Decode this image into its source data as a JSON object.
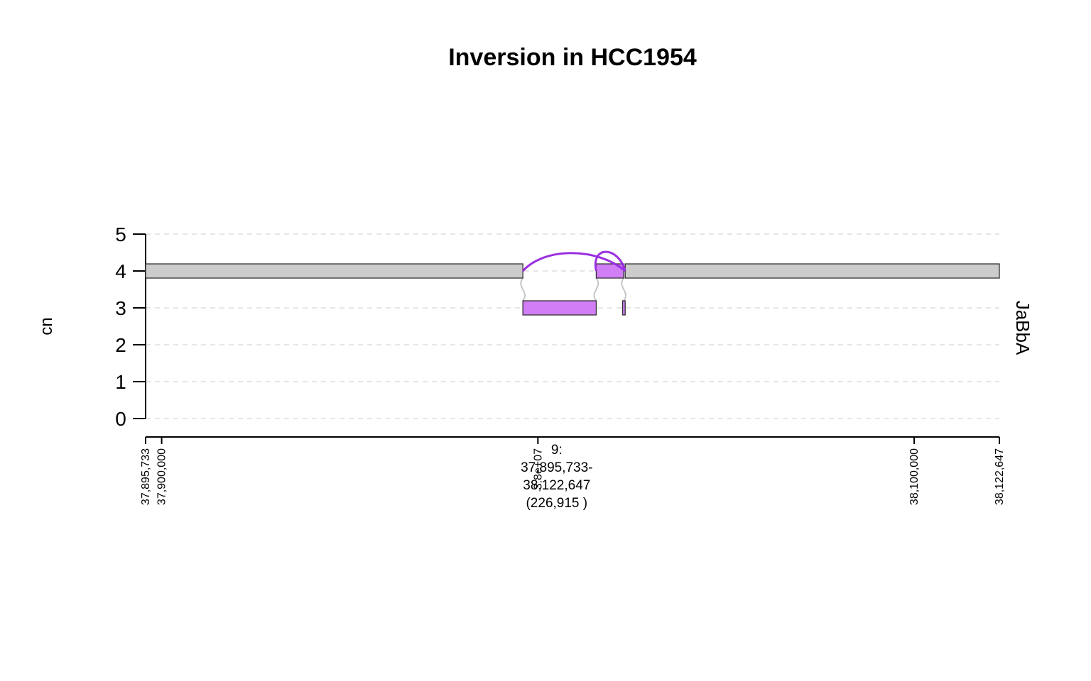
{
  "chart_data": {
    "type": "genome-graph",
    "title": "Inversion in HCC1954",
    "ylabel": "cn",
    "track_label": "JaBbA",
    "ylim": [
      0,
      5
    ],
    "yticks": [
      "0",
      "1",
      "2",
      "3",
      "4",
      "5"
    ],
    "grid": true,
    "xlim": [
      37895733,
      38122647
    ],
    "xticks": [
      {
        "value": 37895733,
        "label": "37,895,733"
      },
      {
        "value": 37900000,
        "label": "37,900,000"
      },
      {
        "value": 38000000,
        "label": "3.8e+07"
      },
      {
        "value": 38100000,
        "label": "38,100,000"
      },
      {
        "value": 38122647,
        "label": "38,122,647"
      }
    ],
    "region_label": [
      "9:",
      "37,895,733-",
      "38,122,647",
      "(226,915 )"
    ],
    "region_label_pos": 38005000,
    "colors": {
      "reference": "#cccccc",
      "altered": "#d17df5",
      "alt_edge": "#9b30e0",
      "ref_edge": "#c6c6c6"
    },
    "nodes": [
      {
        "start": 37895733,
        "end": 37996000,
        "cn": 4,
        "kind": "reference"
      },
      {
        "start": 37996000,
        "end": 38015500,
        "cn": 3,
        "kind": "altered"
      },
      {
        "start": 38015500,
        "end": 38022800,
        "cn": 4,
        "kind": "altered"
      },
      {
        "start": 38022500,
        "end": 38023200,
        "cn": 3,
        "kind": "altered"
      },
      {
        "start": 38023200,
        "end": 38122647,
        "cn": 4,
        "kind": "reference"
      }
    ],
    "alt_edges": [
      {
        "from_pos": 37996000,
        "to_pos": 38023200,
        "cn": 4,
        "peak": 4.55
      },
      {
        "from_pos": 38015500,
        "to_pos": 38023200,
        "cn": 4,
        "peak": 4.5
      }
    ],
    "ref_edges": [
      {
        "x": 37996000,
        "from_cn": 4,
        "to_cn": 3
      },
      {
        "x": 38015500,
        "from_cn": 3,
        "to_cn": 4
      },
      {
        "x": 38022800,
        "from_cn": 4,
        "to_cn": 3
      }
    ]
  }
}
